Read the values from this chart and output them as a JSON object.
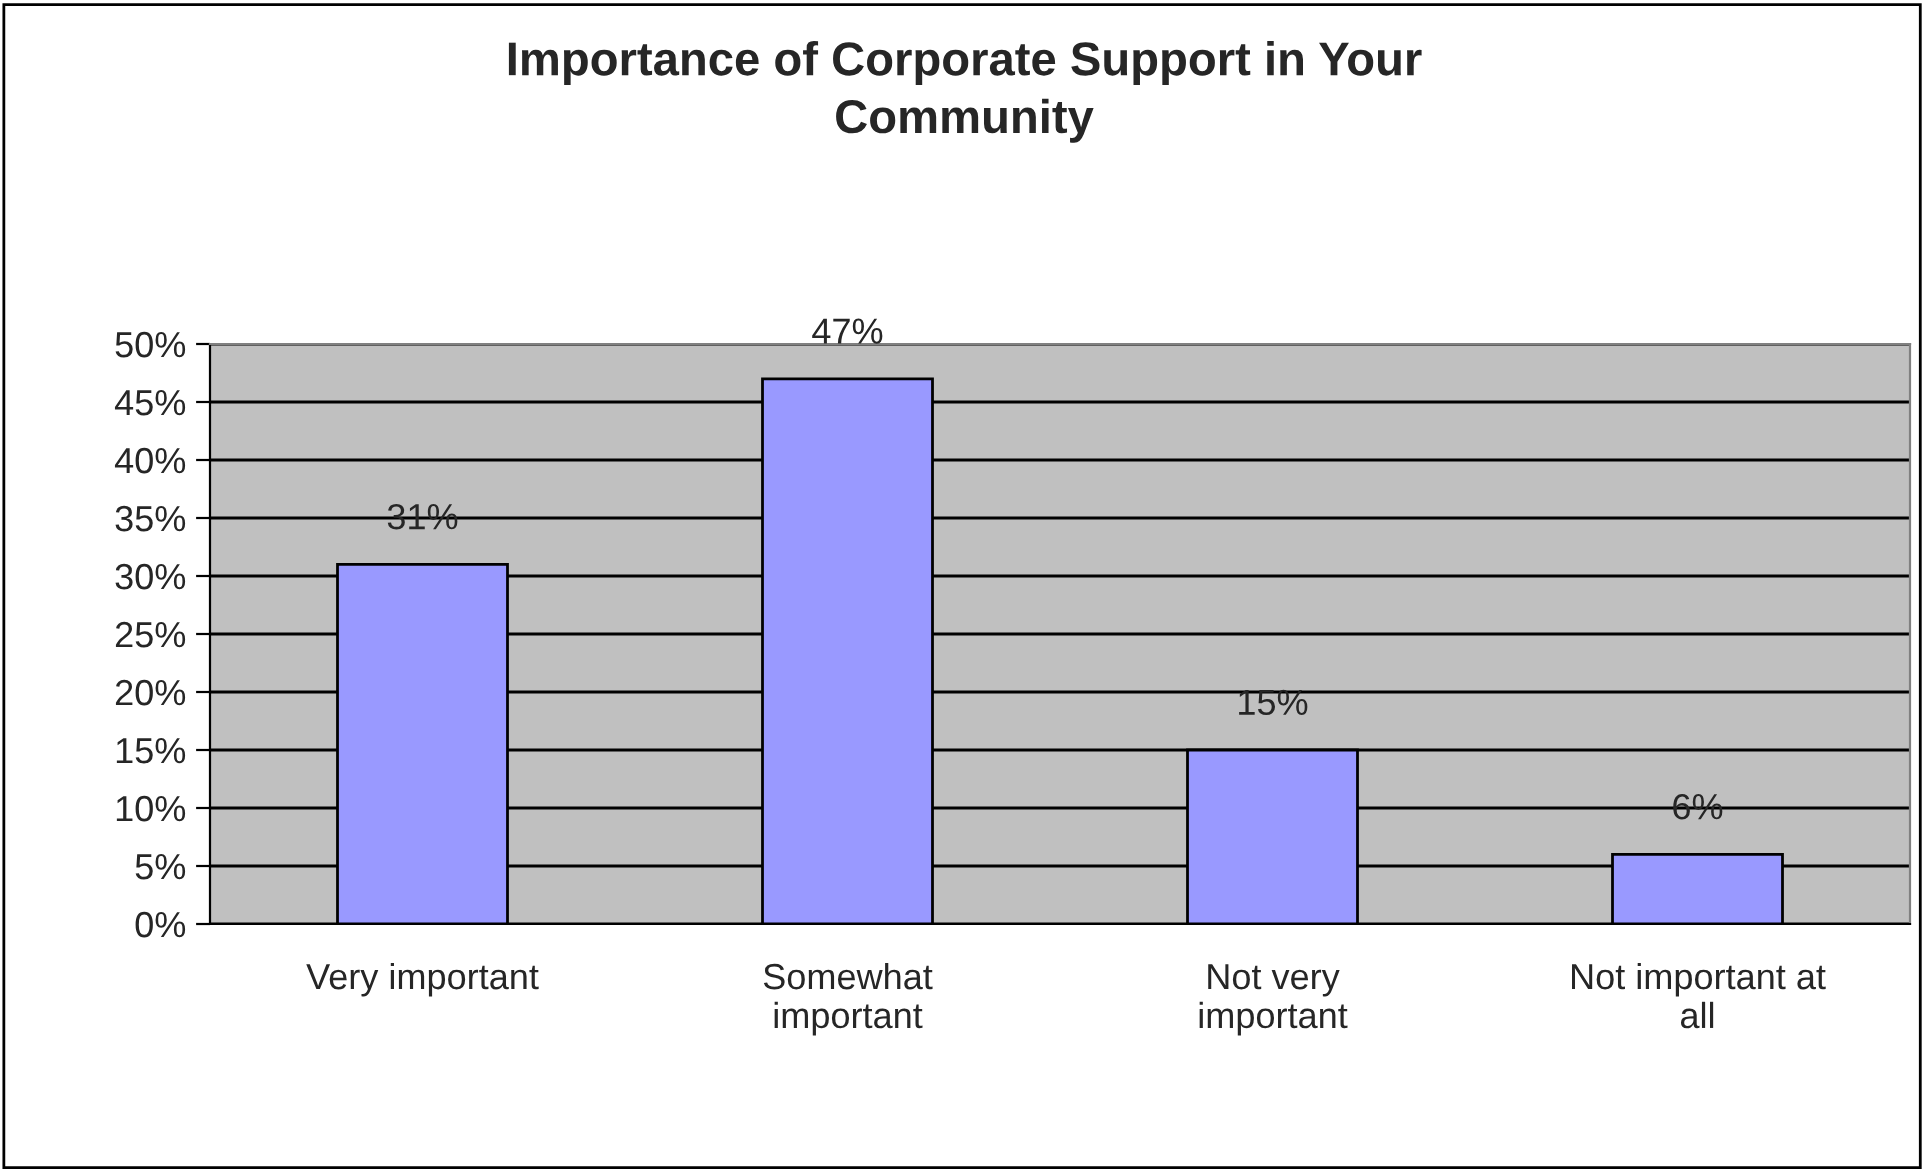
{
  "chart_data": {
    "type": "bar",
    "title": "Importance of Corporate Support in Your\nCommunity",
    "categories": [
      "Very important",
      "Somewhat\nimportant",
      "Not very\nimportant",
      "Not important at\nall"
    ],
    "values": [
      31,
      47,
      15,
      6
    ],
    "value_labels": [
      "31%",
      "47%",
      "15%",
      "6%"
    ],
    "color": "#9999ff",
    "ylim": [
      0,
      50
    ],
    "yticks": [
      {
        "value": 0,
        "label": "0%"
      },
      {
        "value": 5,
        "label": "5%"
      },
      {
        "value": 10,
        "label": "10%"
      },
      {
        "value": 15,
        "label": "15%"
      },
      {
        "value": 20,
        "label": "20%"
      },
      {
        "value": 25,
        "label": "25%"
      },
      {
        "value": 30,
        "label": "30%"
      },
      {
        "value": 35,
        "label": "35%"
      },
      {
        "value": 40,
        "label": "40%"
      },
      {
        "value": 45,
        "label": "45%"
      },
      {
        "value": 50,
        "label": "50%"
      }
    ],
    "grid": "y",
    "legend": false
  }
}
